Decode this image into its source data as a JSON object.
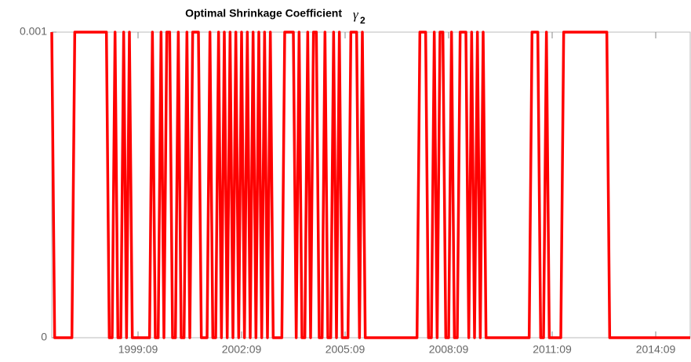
{
  "chart_data": {
    "type": "line",
    "title": "Optimal Shrinkage Coefficient",
    "title_symbol": "γ",
    "title_subscript": "2",
    "color": "#ff0000",
    "categories": [
      "1997:03",
      "1997:04",
      "1997:05",
      "1997:06",
      "1997:07",
      "1997:08",
      "1997:09",
      "1997:10",
      "1997:11",
      "1997:12",
      "1998:01",
      "1998:02",
      "1998:03",
      "1998:04",
      "1998:05",
      "1998:06",
      "1998:07",
      "1998:08",
      "1998:09",
      "1998:10",
      "1998:11",
      "1998:12",
      "1999:01",
      "1999:02",
      "1999:03",
      "1999:04",
      "1999:05",
      "1999:06",
      "1999:07",
      "1999:08",
      "1999:09",
      "1999:10",
      "1999:11",
      "1999:12",
      "2000:01",
      "2000:02",
      "2000:03",
      "2000:04",
      "2000:05",
      "2000:06",
      "2000:07",
      "2000:08",
      "2000:09",
      "2000:10",
      "2000:11",
      "2000:12",
      "2001:01",
      "2001:02",
      "2001:03",
      "2001:04",
      "2001:05",
      "2001:06",
      "2001:07",
      "2001:08",
      "2001:09",
      "2001:10",
      "2001:11",
      "2001:12",
      "2002:01",
      "2002:02",
      "2002:03",
      "2002:04",
      "2002:05",
      "2002:06",
      "2002:07",
      "2002:08",
      "2002:09",
      "2002:10",
      "2002:11",
      "2002:12",
      "2003:01",
      "2003:02",
      "2003:03",
      "2003:04",
      "2003:05",
      "2003:06",
      "2003:07",
      "2003:08",
      "2003:09",
      "2003:10",
      "2003:11",
      "2003:12",
      "2004:01",
      "2004:02",
      "2004:03",
      "2004:04",
      "2004:05",
      "2004:06",
      "2004:07",
      "2004:08",
      "2004:09",
      "2004:10",
      "2004:11",
      "2004:12",
      "2005:01",
      "2005:02",
      "2005:03",
      "2005:04",
      "2005:05",
      "2005:06",
      "2005:07",
      "2005:08",
      "2005:09",
      "2005:10",
      "2005:11",
      "2005:12",
      "2006:01",
      "2006:02",
      "2006:03",
      "2006:04",
      "2006:05",
      "2006:06",
      "2006:07",
      "2006:08",
      "2006:09",
      "2006:10",
      "2006:11",
      "2006:12",
      "2007:01",
      "2007:02",
      "2007:03",
      "2007:04",
      "2007:05",
      "2007:06",
      "2007:07",
      "2007:08",
      "2007:09",
      "2007:10",
      "2007:11",
      "2007:12",
      "2008:01",
      "2008:02",
      "2008:03",
      "2008:04",
      "2008:05",
      "2008:06",
      "2008:07",
      "2008:08",
      "2008:09",
      "2008:10",
      "2008:11",
      "2008:12",
      "2009:01",
      "2009:02",
      "2009:03",
      "2009:04",
      "2009:05",
      "2009:06",
      "2009:07",
      "2009:08",
      "2009:09",
      "2009:10",
      "2009:11",
      "2009:12",
      "2010:01",
      "2010:02",
      "2010:03",
      "2010:04",
      "2010:05",
      "2010:06",
      "2010:07",
      "2010:08",
      "2010:09",
      "2010:10",
      "2010:11",
      "2010:12",
      "2011:01",
      "2011:02",
      "2011:03",
      "2011:04",
      "2011:05",
      "2011:06",
      "2011:07",
      "2011:08",
      "2011:09",
      "2011:10",
      "2011:11",
      "2011:12",
      "2012:01",
      "2012:02",
      "2012:03",
      "2012:04",
      "2012:05",
      "2012:06",
      "2012:07",
      "2012:08",
      "2012:09",
      "2012:10",
      "2012:11",
      "2012:12",
      "2013:01",
      "2013:02",
      "2013:03",
      "2013:04",
      "2013:05",
      "2013:06",
      "2013:07",
      "2013:08",
      "2013:09",
      "2013:10",
      "2013:11",
      "2013:12",
      "2014:01",
      "2014:02",
      "2014:03",
      "2014:04",
      "2014:05",
      "2014:06",
      "2014:07",
      "2014:08",
      "2014:09",
      "2014:10",
      "2014:11",
      "2014:12",
      "2015:01",
      "2015:02",
      "2015:03",
      "2015:04",
      "2015:05",
      "2015:06",
      "2015:07",
      "2015:08",
      "2015:09"
    ],
    "values": [
      0.001,
      0,
      0,
      0,
      0,
      0,
      0,
      0,
      0.001,
      0.001,
      0.001,
      0.001,
      0.001,
      0.001,
      0.001,
      0.001,
      0.001,
      0.001,
      0.001,
      0.001,
      0,
      0,
      0.001,
      0,
      0,
      0.001,
      0,
      0.001,
      0,
      0,
      0,
      0,
      0,
      0,
      0,
      0.001,
      0,
      0,
      0.001,
      0,
      0.001,
      0.001,
      0,
      0,
      0.001,
      0,
      0,
      0.001,
      0,
      0.001,
      0.001,
      0.001,
      0,
      0,
      0,
      0.001,
      0,
      0,
      0.001,
      0,
      0.001,
      0,
      0.001,
      0,
      0.001,
      0,
      0.001,
      0,
      0.001,
      0,
      0.001,
      0,
      0.001,
      0,
      0.001,
      0,
      0.001,
      0,
      0,
      0,
      0,
      0.001,
      0.001,
      0.001,
      0.001,
      0,
      0.001,
      0,
      0,
      0.001,
      0,
      0.001,
      0.001,
      0,
      0,
      0.001,
      0,
      0,
      0.001,
      0,
      0.001,
      0,
      0,
      0,
      0.001,
      0.001,
      0.001,
      0,
      0.001,
      0,
      0,
      0,
      0,
      0,
      0,
      0,
      0,
      0,
      0,
      0,
      0,
      0,
      0,
      0,
      0,
      0,
      0,
      0,
      0.001,
      0.001,
      0.001,
      0,
      0,
      0.001,
      0,
      0.001,
      0.001,
      0,
      0,
      0.001,
      0,
      0,
      0.001,
      0.001,
      0.001,
      0,
      0.001,
      0,
      0.001,
      0,
      0.001,
      0,
      0,
      0,
      0,
      0,
      0,
      0,
      0,
      0,
      0,
      0,
      0,
      0,
      0,
      0,
      0,
      0.001,
      0.001,
      0.001,
      0,
      0,
      0.001,
      0,
      0,
      0,
      0,
      0,
      0.001,
      0.001,
      0.001,
      0.001,
      0.001,
      0.001,
      0.001,
      0.001,
      0.001,
      0.001,
      0.001,
      0.001,
      0.001,
      0.001,
      0.001,
      0.001,
      0,
      0,
      0,
      0,
      0,
      0,
      0,
      0,
      0,
      0,
      0,
      0,
      0,
      0,
      0,
      0,
      0,
      0,
      0,
      0,
      0,
      0,
      0,
      0,
      0,
      0,
      0,
      0,
      0
    ],
    "xticks": [
      "1999:09",
      "2002:09",
      "2005:09",
      "2008:09",
      "2011:09",
      "2014:09"
    ],
    "ylim": [
      0,
      0.001
    ],
    "yticks": [
      0,
      0.001
    ]
  }
}
